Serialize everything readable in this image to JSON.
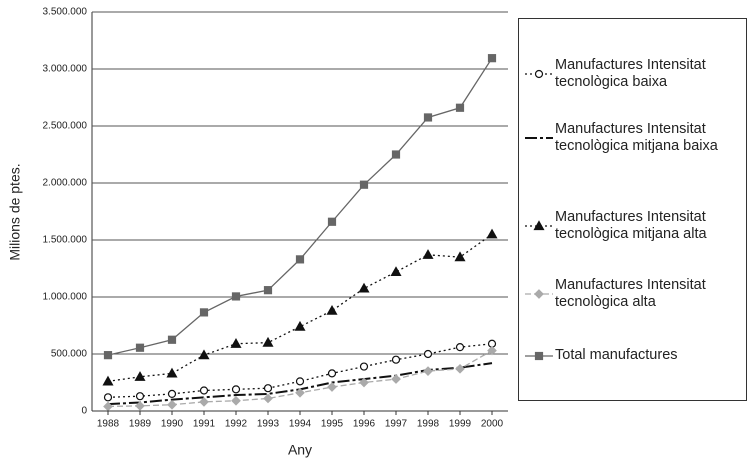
{
  "chart_data": {
    "type": "line",
    "y_label": "Milions de ptes.",
    "x_label": "Any",
    "categories": [
      "1988",
      "1989",
      "1990",
      "1991",
      "1992",
      "1993",
      "1994",
      "1995",
      "1996",
      "1997",
      "1998",
      "1999",
      "2000"
    ],
    "ylim": [
      0,
      3500000
    ],
    "yticks": [
      0,
      {
        "value": 500000,
        "label": "500.000"
      },
      {
        "value": 1000000,
        "label": "1.000.000"
      },
      {
        "value": 1500000,
        "label": "1.500.000"
      },
      {
        "value": 2000000,
        "label": "2.000.000"
      },
      {
        "value": 2500000,
        "label": "2.500.000"
      },
      {
        "value": 3000000,
        "label": "3.000.000"
      },
      {
        "value": 3500000,
        "label": "3.500.000"
      }
    ],
    "grid": true,
    "series": [
      {
        "name": "Manufactures Intensitat tecnològica baixa",
        "color": "#111111",
        "marker": "circle",
        "dash": "2,3",
        "values": [
          120000,
          130000,
          150000,
          180000,
          190000,
          200000,
          260000,
          330000,
          390000,
          450000,
          500000,
          560000,
          590000
        ]
      },
      {
        "name": "Manufactures Intensitat tecnològica mitjana baixa",
        "color": "#111111",
        "marker": "none",
        "dash": "12,3,3,3",
        "values": [
          60000,
          75000,
          100000,
          120000,
          140000,
          150000,
          190000,
          250000,
          280000,
          310000,
          360000,
          380000,
          420000
        ]
      },
      {
        "name": "Manufactures Intensitat tecnològica mitjana alta",
        "color": "#111111",
        "marker": "triangle",
        "dash": "2,3",
        "values": [
          260000,
          300000,
          330000,
          490000,
          590000,
          600000,
          740000,
          880000,
          1075000,
          1220000,
          1370000,
          1350000,
          1550000
        ]
      },
      {
        "name": "Manufactures Intensitat tecnològica alta",
        "color": "#aaaaaa",
        "marker": "diamond",
        "dash": "6,3",
        "values": [
          40000,
          45000,
          55000,
          80000,
          90000,
          110000,
          160000,
          210000,
          250000,
          280000,
          350000,
          370000,
          530000
        ]
      },
      {
        "name": "Total manufactures",
        "color": "#666666",
        "marker": "square",
        "dash": "none",
        "values": [
          490000,
          555000,
          625000,
          865000,
          1005000,
          1060000,
          1330000,
          1660000,
          1985000,
          2250000,
          2575000,
          2660000,
          3095000
        ]
      }
    ]
  }
}
